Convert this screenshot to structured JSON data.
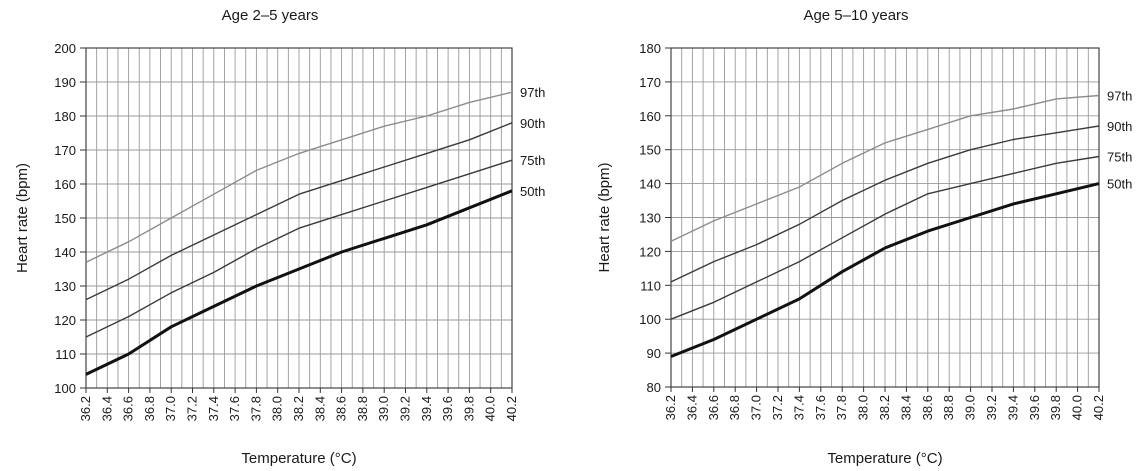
{
  "chart_data": [
    {
      "type": "line",
      "title": "Age 2–5 years",
      "xlabel": "Temperature (°C)",
      "ylabel": "Heart rate (bpm)",
      "ylim": [
        100,
        200
      ],
      "xlim": [
        36.2,
        40.2
      ],
      "yticks": [
        "100",
        "110",
        "120",
        "130",
        "140",
        "150",
        "160",
        "170",
        "180",
        "190",
        "200"
      ],
      "xticks": [
        "36.2",
        "36.4",
        "36.6",
        "36.8",
        "37.0",
        "37.2",
        "37.4",
        "37.6",
        "37.8",
        "38.0",
        "38.2",
        "38.4",
        "38.6",
        "38.8",
        "39.0",
        "39.2",
        "39.4",
        "39.6",
        "39.8",
        "40.0",
        "40.2"
      ],
      "grid": true,
      "series": [
        {
          "name": "97th",
          "color": "#8c8c8c",
          "x": [
            36.2,
            36.6,
            37.0,
            37.4,
            37.8,
            38.2,
            38.6,
            39.0,
            39.4,
            39.8,
            40.2
          ],
          "values": [
            137,
            143,
            150,
            157,
            164,
            169,
            173,
            177,
            180,
            184,
            187
          ]
        },
        {
          "name": "90th",
          "color": "#3a3a3a",
          "x": [
            36.2,
            36.6,
            37.0,
            37.4,
            37.8,
            38.2,
            38.6,
            39.0,
            39.4,
            39.8,
            40.2
          ],
          "values": [
            126,
            132,
            139,
            145,
            151,
            157,
            161,
            165,
            169,
            173,
            178
          ]
        },
        {
          "name": "75th",
          "color": "#3a3a3a",
          "x": [
            36.2,
            36.6,
            37.0,
            37.4,
            37.8,
            38.2,
            38.6,
            39.0,
            39.4,
            39.8,
            40.2
          ],
          "values": [
            115,
            121,
            128,
            134,
            141,
            147,
            151,
            155,
            159,
            163,
            167
          ]
        },
        {
          "name": "50th",
          "color": "#111111",
          "x": [
            36.2,
            36.6,
            37.0,
            37.4,
            37.8,
            38.2,
            38.6,
            39.0,
            39.4,
            39.8,
            40.2
          ],
          "values": [
            104,
            110,
            118,
            124,
            130,
            135,
            140,
            144,
            148,
            153,
            158
          ]
        }
      ]
    },
    {
      "type": "line",
      "title": "Age 5–10 years",
      "xlabel": "Temperature (°C)",
      "ylabel": "Heart rate (bpm)",
      "ylim": [
        80,
        180
      ],
      "xlim": [
        36.2,
        40.2
      ],
      "yticks": [
        "80",
        "90",
        "100",
        "110",
        "120",
        "130",
        "140",
        "150",
        "160",
        "170",
        "180"
      ],
      "xticks": [
        "36.2",
        "36.4",
        "36.6",
        "36.8",
        "37.0",
        "37.2",
        "37.4",
        "37.6",
        "37.8",
        "38.0",
        "38.2",
        "38.4",
        "38.6",
        "38.8",
        "39.0",
        "39.2",
        "39.4",
        "39.6",
        "39.8",
        "40.0",
        "40.2"
      ],
      "grid": true,
      "series": [
        {
          "name": "97th",
          "color": "#8c8c8c",
          "x": [
            36.2,
            36.6,
            37.0,
            37.4,
            37.8,
            38.2,
            38.6,
            39.0,
            39.4,
            39.8,
            40.2
          ],
          "values": [
            123,
            129,
            134,
            139,
            146,
            152,
            156,
            160,
            162,
            165,
            166
          ]
        },
        {
          "name": "90th",
          "color": "#3a3a3a",
          "x": [
            36.2,
            36.6,
            37.0,
            37.4,
            37.8,
            38.2,
            38.6,
            39.0,
            39.4,
            39.8,
            40.2
          ],
          "values": [
            111,
            117,
            122,
            128,
            135,
            141,
            146,
            150,
            153,
            155,
            157
          ]
        },
        {
          "name": "75th",
          "color": "#3a3a3a",
          "x": [
            36.2,
            36.6,
            37.0,
            37.4,
            37.8,
            38.2,
            38.6,
            39.0,
            39.4,
            39.8,
            40.2
          ],
          "values": [
            100,
            105,
            111,
            117,
            124,
            131,
            137,
            140,
            143,
            146,
            148
          ]
        },
        {
          "name": "50th",
          "color": "#111111",
          "x": [
            36.2,
            36.6,
            37.0,
            37.4,
            37.8,
            38.2,
            38.6,
            39.0,
            39.4,
            39.8,
            40.2
          ],
          "values": [
            89,
            94,
            100,
            106,
            114,
            121,
            126,
            130,
            134,
            137,
            140
          ]
        }
      ]
    }
  ]
}
